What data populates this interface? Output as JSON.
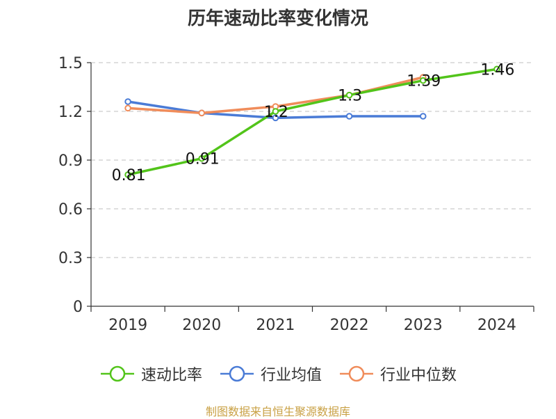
{
  "chart_data": {
    "type": "line",
    "title": "历年速动比率变化情况",
    "categories": [
      "2019",
      "2020",
      "2021",
      "2022",
      "2023",
      "2024"
    ],
    "ylim": [
      0,
      1.5
    ],
    "yticks": [
      "0",
      "0.3",
      "0.6",
      "0.9",
      "1.2",
      "1.5"
    ],
    "grid": true,
    "legend_position": "bottom",
    "series": [
      {
        "name": "速动比率",
        "color": "#52c41a",
        "values": [
          0.81,
          0.91,
          1.2,
          1.3,
          1.39,
          1.46
        ],
        "labels": [
          "0.81",
          "0.91",
          "1.2",
          "1.3",
          "1.39",
          "1.46"
        ]
      },
      {
        "name": "行业均值",
        "color": "#4a7bd6",
        "values": [
          1.26,
          1.19,
          1.16,
          1.17,
          1.17,
          null
        ]
      },
      {
        "name": "行业中位数",
        "color": "#f08c5a",
        "values": [
          1.22,
          1.19,
          1.23,
          1.3,
          1.41,
          null
        ]
      }
    ]
  },
  "source": "制图数据来自恒生聚源数据库"
}
